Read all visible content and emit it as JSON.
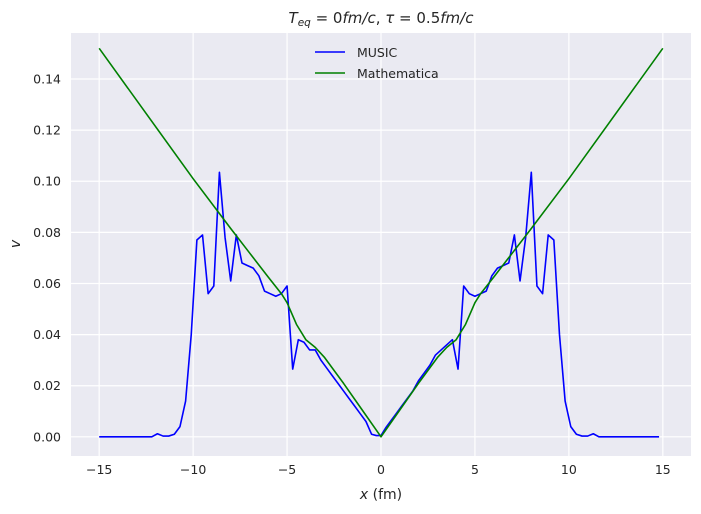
{
  "chart_data": {
    "type": "line",
    "title": "T_eq = 0fm/c, τ = 0.5fm/c",
    "title_parts": {
      "a_main": "T",
      "a_sub": "eq",
      "a_rest": " = 0",
      "b_it": "fm",
      "c_sep": "/",
      "d_it": "c",
      "e_comma": ", ",
      "f_tau": "τ",
      "g_eq": " = 0.5",
      "h_it": "fm",
      "i_sep": "/",
      "j_it": "c"
    },
    "xlabel": {
      "var": "x",
      "unit": " (fm)"
    },
    "ylabel": "v",
    "xlim": [
      -16.5,
      16.5
    ],
    "ylim": [
      -0.0075,
      0.158
    ],
    "xticks": [
      -15,
      -10,
      -5,
      0,
      5,
      10,
      15
    ],
    "xtick_labels": [
      "−15",
      "−10",
      "−5",
      "0",
      "5",
      "10",
      "15"
    ],
    "yticks": [
      0.0,
      0.02,
      0.04,
      0.06,
      0.08,
      0.1,
      0.12,
      0.14
    ],
    "ytick_labels": [
      "0.00",
      "0.02",
      "0.04",
      "0.06",
      "0.08",
      "0.10",
      "0.12",
      "0.14"
    ],
    "grid": true,
    "legend_position": "top-center",
    "background_color": "#eaeaf2",
    "series": [
      {
        "name": "MUSIC",
        "color": "#0000ff",
        "x": [
          -15,
          -12.2,
          -11.9,
          -11.6,
          -11.3,
          -11.0,
          -10.7,
          -10.4,
          -10.1,
          -9.8,
          -9.5,
          -9.2,
          -8.9,
          -8.6,
          -8.3,
          -8.0,
          -7.7,
          -7.4,
          -7.1,
          -6.8,
          -6.5,
          -6.2,
          -5.9,
          -5.6,
          -5.3,
          -5.0,
          -4.7,
          -4.4,
          -4.1,
          -3.8,
          -3.5,
          -3.2,
          -2.9,
          -2.6,
          -2.3,
          -2.0,
          -1.7,
          -1.4,
          -1.1,
          -0.8,
          -0.5,
          -0.25,
          0,
          0.25,
          0.5,
          0.8,
          1.1,
          1.4,
          1.7,
          2.0,
          2.3,
          2.6,
          2.9,
          3.2,
          3.5,
          3.8,
          4.1,
          4.4,
          4.7,
          5.0,
          5.3,
          5.6,
          5.9,
          6.2,
          6.5,
          6.8,
          7.1,
          7.4,
          7.7,
          8.0,
          8.3,
          8.6,
          8.9,
          9.2,
          9.5,
          9.8,
          10.1,
          10.4,
          10.7,
          11.0,
          11.3,
          11.6,
          11.9,
          12.2,
          14.8
        ],
        "y": [
          0.0,
          0.0,
          0.0012,
          0.0003,
          0.0003,
          0.001,
          0.004,
          0.014,
          0.04,
          0.077,
          0.079,
          0.056,
          0.059,
          0.1035,
          0.078,
          0.061,
          0.079,
          0.068,
          0.067,
          0.066,
          0.063,
          0.057,
          0.056,
          0.055,
          0.056,
          0.059,
          0.0265,
          0.038,
          0.037,
          0.034,
          0.034,
          0.03,
          0.027,
          0.024,
          0.021,
          0.018,
          0.015,
          0.012,
          0.009,
          0.006,
          0.001,
          0.0005,
          0.0005,
          0.0035,
          0.006,
          0.009,
          0.012,
          0.015,
          0.018,
          0.022,
          0.025,
          0.028,
          0.032,
          0.034,
          0.036,
          0.038,
          0.0265,
          0.059,
          0.056,
          0.055,
          0.056,
          0.057,
          0.063,
          0.066,
          0.067,
          0.068,
          0.079,
          0.061,
          0.078,
          0.1035,
          0.059,
          0.056,
          0.079,
          0.077,
          0.04,
          0.014,
          0.004,
          0.001,
          0.0003,
          0.0003,
          0.0012,
          0.0,
          0.0,
          0.0,
          0.0
        ]
      },
      {
        "name": "Mathematica",
        "color": "#008000",
        "x": [
          -15,
          -10,
          -8,
          -7,
          -6,
          -5.3,
          -5.0,
          -4.5,
          -4.0,
          -3.5,
          -3.0,
          -2.0,
          -1.0,
          0,
          1.0,
          2.0,
          3.0,
          3.5,
          4.0,
          4.5,
          5.0,
          5.3,
          6,
          7,
          8,
          10,
          15
        ],
        "y": [
          0.152,
          0.101,
          0.0815,
          0.072,
          0.0625,
          0.056,
          0.0525,
          0.044,
          0.038,
          0.035,
          0.031,
          0.021,
          0.0105,
          0.0,
          0.0105,
          0.021,
          0.031,
          0.035,
          0.038,
          0.044,
          0.0525,
          0.056,
          0.0625,
          0.072,
          0.0815,
          0.101,
          0.152
        ]
      }
    ]
  }
}
